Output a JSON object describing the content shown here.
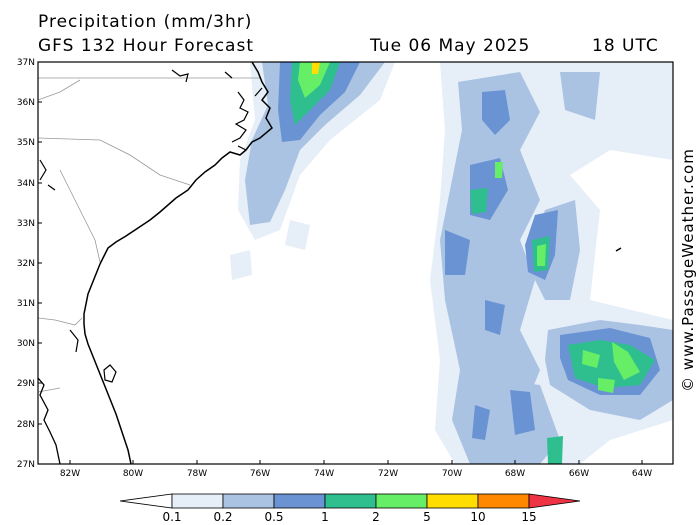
{
  "header": {
    "line1": "Precipitation (mm/3hr)",
    "line2": "GFS 132 Hour Forecast",
    "valid_date": "Tue 06 May 2025",
    "valid_time": "18 UTC"
  },
  "credit": "© www.PassageWeather.com",
  "axes": {
    "lat_labels": [
      "37N",
      "36N",
      "35N",
      "34N",
      "33N",
      "32N",
      "31N",
      "30N",
      "29N",
      "28N",
      "27N"
    ],
    "lon_labels": [
      "82W",
      "80W",
      "78W",
      "76W",
      "74W",
      "72W",
      "70W",
      "68W",
      "66W",
      "64W"
    ]
  },
  "colorbar": {
    "labels": [
      "0.1",
      "0.2",
      "0.5",
      "1",
      "2",
      "5",
      "10",
      "15"
    ],
    "colors": [
      "#e6eef8",
      "#aac3e3",
      "#6a93d3",
      "#2fbf8f",
      "#66ee66",
      "#ffdd00",
      "#ff8800",
      "#ee3344"
    ]
  },
  "colors": {
    "land_outline": "#000000",
    "state_border": "#999999",
    "frame": "#000000"
  }
}
